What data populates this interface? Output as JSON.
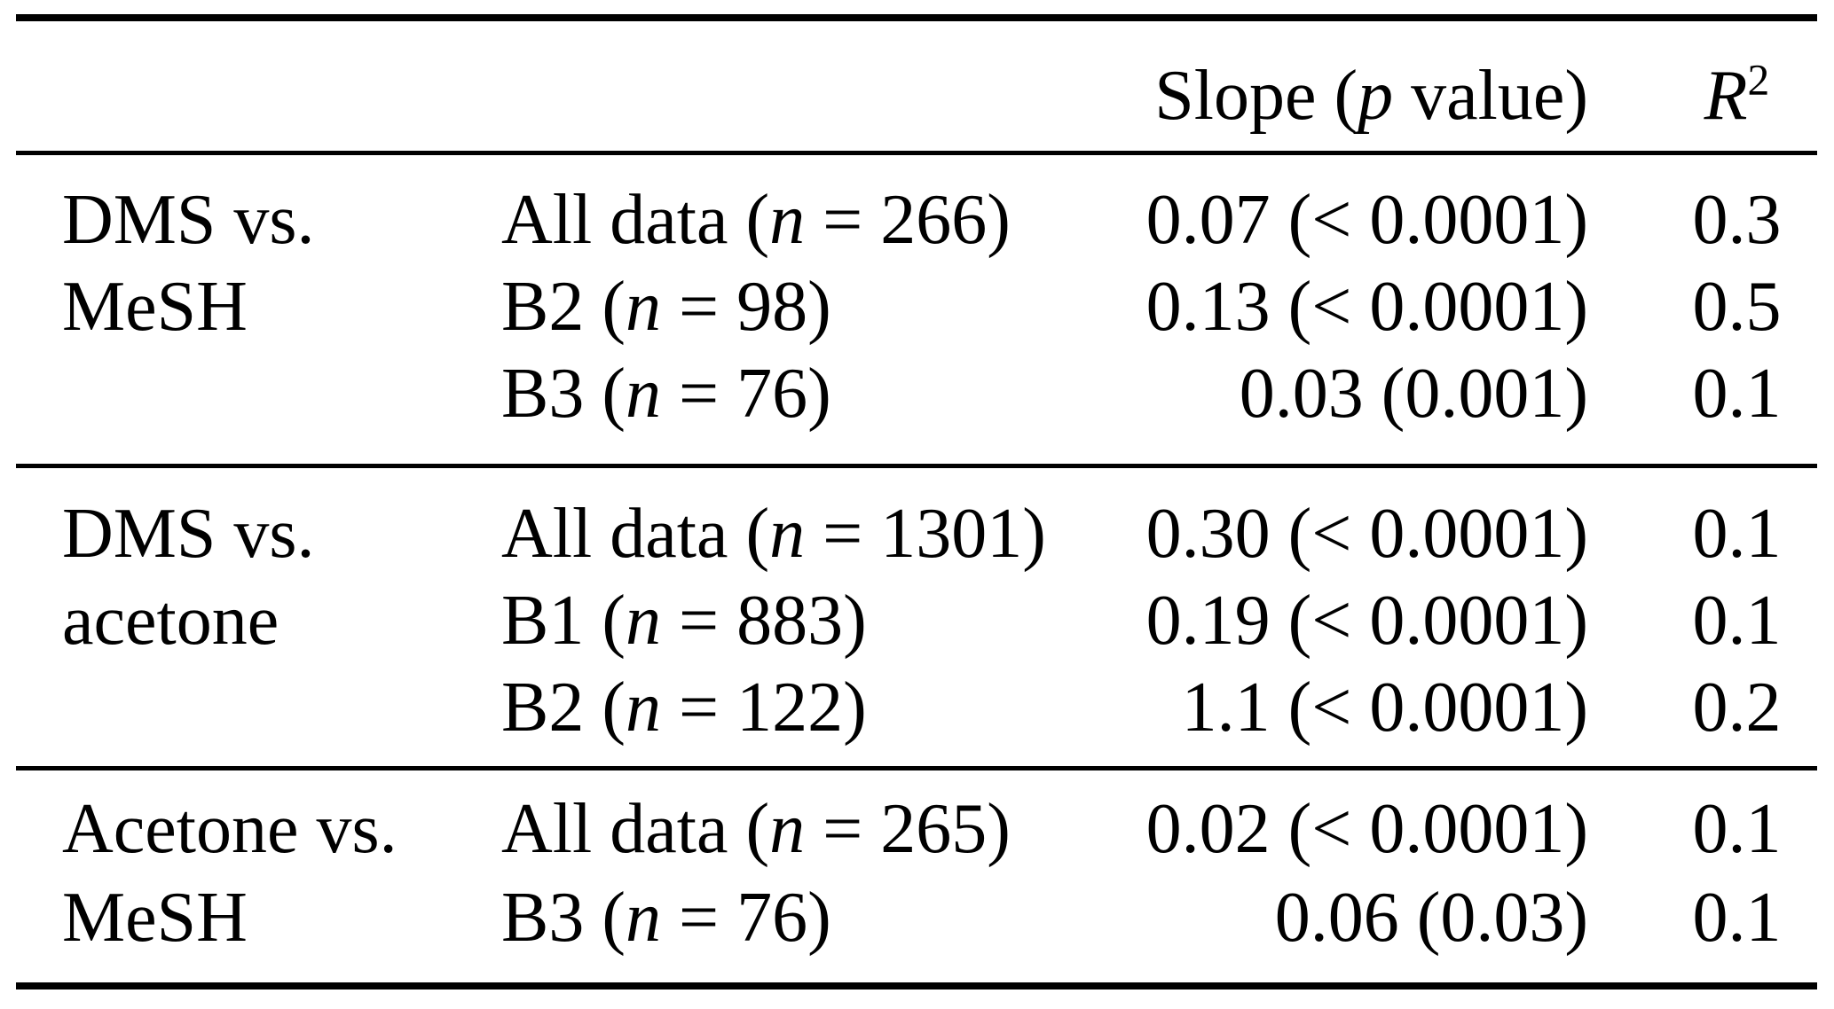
{
  "table": {
    "header": {
      "slope_runs": [
        {
          "t": "Slope ("
        },
        {
          "t": "p",
          "i": true
        },
        {
          "t": " value)"
        }
      ],
      "r2_runs": [
        {
          "t": "R",
          "i": true
        },
        {
          "t": "2",
          "sup": true
        }
      ]
    },
    "groups": [
      {
        "comparison_lines": [
          "DMS vs.",
          "MeSH"
        ],
        "rows": [
          {
            "sample_runs": [
              {
                "t": "All data ("
              },
              {
                "t": "n",
                "i": true
              },
              {
                "t": " = 266)"
              }
            ],
            "slope": "0.07 (< 0.0001)",
            "r2": "0.3"
          },
          {
            "sample_runs": [
              {
                "t": "B2 ("
              },
              {
                "t": "n",
                "i": true
              },
              {
                "t": " = 98)"
              }
            ],
            "slope": "0.13 (< 0.0001)",
            "r2": "0.5"
          },
          {
            "sample_runs": [
              {
                "t": "B3 ("
              },
              {
                "t": "n",
                "i": true
              },
              {
                "t": " = 76)"
              }
            ],
            "slope": "0.03 (0.001)",
            "r2": "0.1"
          }
        ]
      },
      {
        "comparison_lines": [
          "DMS vs.",
          "acetone"
        ],
        "rows": [
          {
            "sample_runs": [
              {
                "t": "All data ("
              },
              {
                "t": "n",
                "i": true
              },
              {
                "t": " = 1301)"
              }
            ],
            "slope": "0.30 (< 0.0001)",
            "r2": "0.1"
          },
          {
            "sample_runs": [
              {
                "t": "B1 ("
              },
              {
                "t": "n",
                "i": true
              },
              {
                "t": " = 883)"
              }
            ],
            "slope": "0.19 (< 0.0001)",
            "r2": "0.1"
          },
          {
            "sample_runs": [
              {
                "t": "B2 ("
              },
              {
                "t": "n",
                "i": true
              },
              {
                "t": " = 122)"
              }
            ],
            "slope": "1.1 (< 0.0001)",
            "r2": "0.2"
          }
        ]
      },
      {
        "comparison_lines": [
          "Acetone vs.",
          "MeSH"
        ],
        "rows": [
          {
            "sample_runs": [
              {
                "t": "All data ("
              },
              {
                "t": "n",
                "i": true
              },
              {
                "t": " = 265)"
              }
            ],
            "slope": "0.02 (< 0.0001)",
            "r2": "0.1"
          },
          {
            "sample_runs": [
              {
                "t": "B3 ("
              },
              {
                "t": "n",
                "i": true
              },
              {
                "t": " = 76)"
              }
            ],
            "slope": "0.06 (0.03)",
            "r2": "0.1"
          }
        ]
      }
    ]
  },
  "chart_data": {
    "type": "table",
    "columns": [
      "",
      "",
      "Slope (p value)",
      "R2"
    ],
    "rows": [
      [
        "DMS vs. MeSH",
        "All data (n = 266)",
        "0.07 (< 0.0001)",
        "0.3"
      ],
      [
        "DMS vs. MeSH",
        "B2 (n = 98)",
        "0.13 (< 0.0001)",
        "0.5"
      ],
      [
        "DMS vs. MeSH",
        "B3 (n = 76)",
        "0.03 (0.001)",
        "0.1"
      ],
      [
        "DMS vs. acetone",
        "All data (n = 1301)",
        "0.30 (< 0.0001)",
        "0.1"
      ],
      [
        "DMS vs. acetone",
        "B1 (n = 883)",
        "0.19 (< 0.0001)",
        "0.1"
      ],
      [
        "DMS vs. acetone",
        "B2 (n = 122)",
        "1.1 (< 0.0001)",
        "0.2"
      ],
      [
        "Acetone vs. MeSH",
        "All data (n = 265)",
        "0.02 (< 0.0001)",
        "0.1"
      ],
      [
        "Acetone vs. MeSH",
        "B3 (n = 76)",
        "0.06 (0.03)",
        "0.1"
      ]
    ],
    "colors": {
      "text": "#000000",
      "background": "#ffffff",
      "rules": "#000000"
    }
  }
}
